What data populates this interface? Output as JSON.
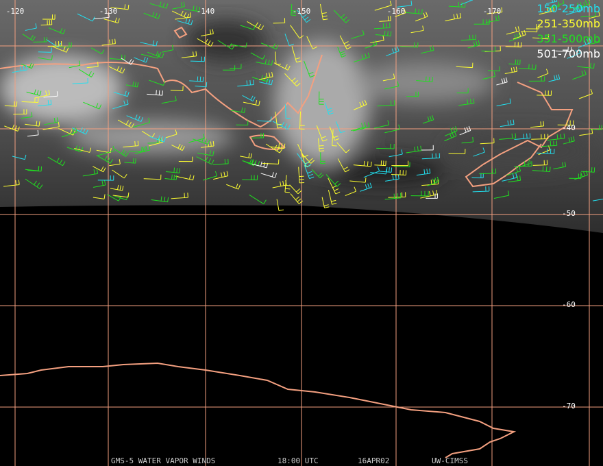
{
  "map": {
    "longitude_labels": [
      "-120",
      "-130",
      "-140",
      "-150",
      "-160",
      "-170"
    ],
    "latitude_labels": [
      "-40",
      "-50",
      "-60",
      "-70"
    ],
    "legend": [
      {
        "name": "150-250mb",
        "color": "#22e0f0"
      },
      {
        "name": "251-350mb",
        "color": "#ffff30"
      },
      {
        "name": "351-500mb",
        "color": "#20e020"
      },
      {
        "name": "501-700mb",
        "color": "#ffffff"
      }
    ],
    "footer": [
      "GMS-5 WATER VAPOR WINDS",
      "18:00 UTC",
      "16APR02",
      "UW-CIMSS"
    ]
  }
}
